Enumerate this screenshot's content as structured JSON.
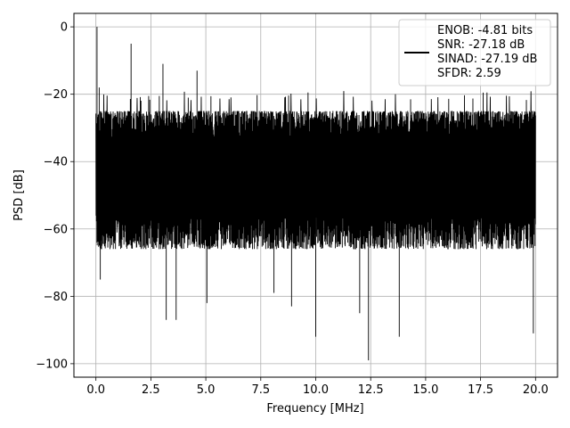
{
  "chart_data": {
    "type": "line",
    "xlabel": "Frequency [MHz]",
    "ylabel": "PSD [dB]",
    "xlim": [
      -1.0,
      21.0
    ],
    "ylim": [
      -104,
      4
    ],
    "xticks": [
      0.0,
      2.5,
      5.0,
      7.5,
      10.0,
      12.5,
      15.0,
      17.5,
      20.0
    ],
    "xtick_labels": [
      "0.0",
      "2.5",
      "5.0",
      "7.5",
      "10.0",
      "12.5",
      "15.0",
      "17.5",
      "20.0"
    ],
    "yticks": [
      0,
      -20,
      -40,
      -60,
      -80,
      -100
    ],
    "ytick_labels": [
      "0",
      "−20",
      "−40",
      "−60",
      "−80",
      "−100"
    ],
    "grid": true,
    "legend_position": "top-right",
    "series": [
      {
        "color": "#000000",
        "legend_lines": [
          "ENOB: -4.81 bits",
          "SNR: -27.18 dB",
          "SINAD: -27.19 dB",
          "SFDR: 2.59"
        ],
        "noise_band_db": [
          -68,
          -22
        ],
        "spurs": [
          {
            "x": 0.05,
            "y": 0
          },
          {
            "x": 1.6,
            "y": -5
          },
          {
            "x": 3.05,
            "y": -11
          },
          {
            "x": 4.6,
            "y": -13
          },
          {
            "x": 0.15,
            "y": -18
          }
        ],
        "dips": [
          {
            "x": 0.2,
            "y": -75
          },
          {
            "x": 3.2,
            "y": -87
          },
          {
            "x": 3.65,
            "y": -87
          },
          {
            "x": 5.05,
            "y": -82
          },
          {
            "x": 8.1,
            "y": -79
          },
          {
            "x": 8.9,
            "y": -83
          },
          {
            "x": 10.0,
            "y": -92
          },
          {
            "x": 12.0,
            "y": -85
          },
          {
            "x": 12.4,
            "y": -99
          },
          {
            "x": 13.8,
            "y": -92
          },
          {
            "x": 19.9,
            "y": -91
          }
        ]
      }
    ]
  }
}
